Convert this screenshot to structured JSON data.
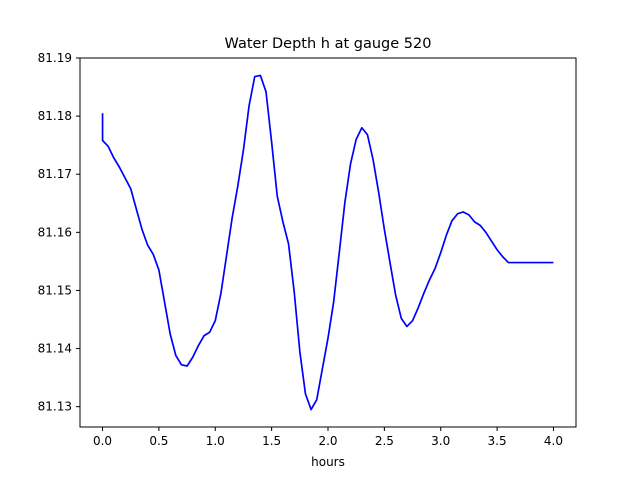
{
  "chart_data": {
    "type": "line",
    "title": "Water Depth h at gauge 520",
    "xlabel": "hours",
    "ylabel": "",
    "xlim": [
      -0.2,
      4.2
    ],
    "ylim": [
      81.1265,
      81.19
    ],
    "grid": false,
    "legend": "none",
    "xticks": [
      0.0,
      0.5,
      1.0,
      1.5,
      2.0,
      2.5,
      3.0,
      3.5,
      4.0
    ],
    "xtick_labels": [
      "0.0",
      "0.5",
      "1.0",
      "1.5",
      "2.0",
      "2.5",
      "3.0",
      "3.5",
      "4.0"
    ],
    "yticks": [
      81.13,
      81.14,
      81.15,
      81.16,
      81.17,
      81.18,
      81.19
    ],
    "ytick_labels": [
      "81.13",
      "81.14",
      "81.15",
      "81.16",
      "81.17",
      "81.18",
      "81.19"
    ],
    "series": [
      {
        "color": "#0000ff",
        "x": [
          0.0,
          0.0,
          0.05,
          0.1,
          0.15,
          0.25,
          0.3,
          0.35,
          0.4,
          0.45,
          0.5,
          0.55,
          0.6,
          0.65,
          0.7,
          0.75,
          0.8,
          0.85,
          0.9,
          0.95,
          1.0,
          1.05,
          1.1,
          1.15,
          1.2,
          1.25,
          1.3,
          1.35,
          1.4,
          1.45,
          1.5,
          1.55,
          1.6,
          1.65,
          1.7,
          1.75,
          1.8,
          1.85,
          1.9,
          1.95,
          2.0,
          2.05,
          2.1,
          2.15,
          2.2,
          2.25,
          2.3,
          2.35,
          2.4,
          2.45,
          2.5,
          2.55,
          2.6,
          2.65,
          2.7,
          2.75,
          2.8,
          2.85,
          2.9,
          2.95,
          3.0,
          3.05,
          3.1,
          3.15,
          3.2,
          3.25,
          3.3,
          3.35,
          3.4,
          3.45,
          3.5,
          3.55,
          3.6,
          3.65,
          3.7,
          3.75,
          3.8,
          3.85,
          3.9,
          3.95,
          4.0
        ],
        "y": [
          81.1805,
          81.1758,
          81.1748,
          81.1728,
          81.1712,
          81.1675,
          81.164,
          81.1605,
          81.1578,
          81.1562,
          81.1535,
          81.148,
          81.1425,
          81.1388,
          81.1372,
          81.137,
          81.1385,
          81.1405,
          81.1422,
          81.1428,
          81.1448,
          81.1495,
          81.156,
          81.1625,
          81.168,
          81.1742,
          81.1818,
          81.1868,
          81.187,
          81.1842,
          81.1755,
          81.1662,
          81.1618,
          81.158,
          81.1498,
          81.1395,
          81.1322,
          81.1295,
          81.1312,
          81.1365,
          81.1418,
          81.148,
          81.1565,
          81.1652,
          81.1718,
          81.176,
          81.178,
          81.1768,
          81.1725,
          81.1668,
          81.1605,
          81.1548,
          81.1492,
          81.1452,
          81.1438,
          81.1448,
          81.147,
          81.1495,
          81.1518,
          81.1538,
          81.1565,
          81.1595,
          81.162,
          81.1632,
          81.1635,
          81.163,
          81.1618,
          81.1612,
          81.16,
          81.1585,
          81.157,
          81.1558,
          81.1548,
          81.1548,
          81.1548,
          81.1548,
          81.1548,
          81.1548,
          81.1548,
          81.1548,
          81.1548
        ]
      }
    ]
  }
}
